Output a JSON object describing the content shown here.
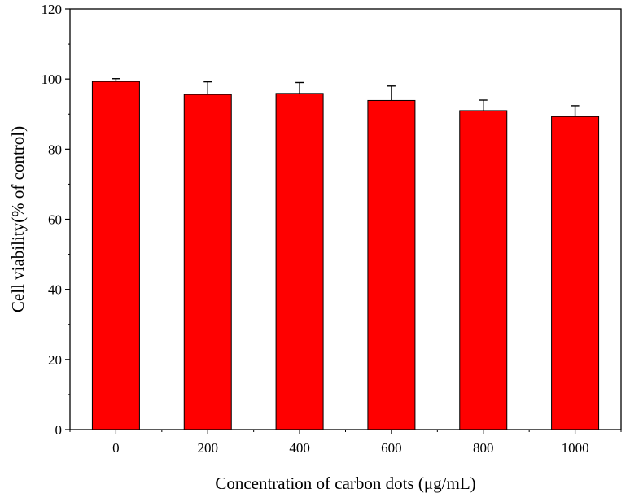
{
  "chart_data": {
    "type": "bar",
    "categories": [
      "0",
      "200",
      "400",
      "600",
      "800",
      "1000"
    ],
    "values": [
      99.3,
      95.6,
      95.9,
      93.9,
      91.0,
      89.3
    ],
    "error_plus": [
      0.8,
      3.6,
      3.1,
      4.1,
      3.0,
      3.1
    ],
    "xlabel": "Concentration of carbon dots (μg/mL)",
    "ylabel": "Cell viability(% of control)",
    "ylim": [
      0,
      120
    ],
    "yticks": [
      "0",
      "20",
      "40",
      "60",
      "80",
      "100",
      "120"
    ],
    "grid": false,
    "legend": "none",
    "bar_color": "#ff0000",
    "error_bar_color": "#000000"
  }
}
